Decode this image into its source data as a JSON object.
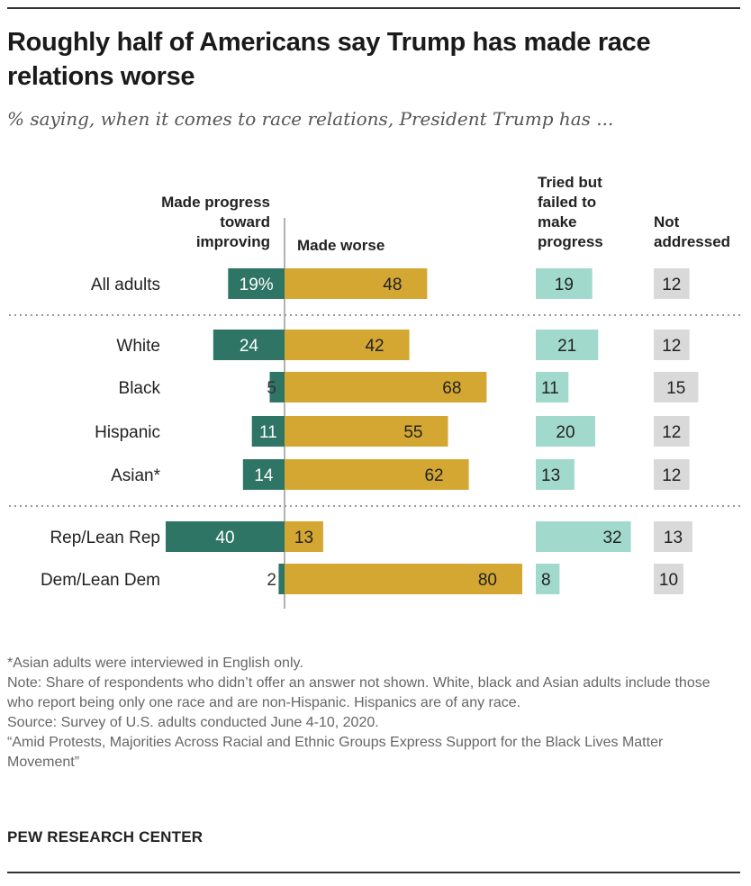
{
  "title": "Roughly half of Americans say Trump has made race relations worse",
  "subtitle": "% saying, when it comes to race relations, President Trump has ...",
  "colors": {
    "progress": "#2e7565",
    "worse": "#d4a733",
    "tried": "#a2d9cd",
    "not_addressed": "#d9d9d9"
  },
  "chart_data": {
    "type": "bar",
    "columns": {
      "progress": "Made progress toward improving",
      "worse": "Made worse",
      "tried": "Tried but failed to make progress",
      "not_addressed": "Not addressed"
    },
    "groups": [
      {
        "rows": [
          {
            "category": "All adults",
            "progress": 19,
            "progress_label": "19%",
            "worse": 48,
            "tried": 19,
            "not_addressed": 12
          }
        ]
      },
      {
        "rows": [
          {
            "category": "White",
            "progress": 24,
            "progress_label": "24",
            "worse": 42,
            "tried": 21,
            "not_addressed": 12
          },
          {
            "category": "Black",
            "progress": 5,
            "progress_label": "5",
            "worse": 68,
            "tried": 11,
            "not_addressed": 15
          },
          {
            "category": "Hispanic",
            "progress": 11,
            "progress_label": "11",
            "worse": 55,
            "tried": 20,
            "not_addressed": 12
          },
          {
            "category": "Asian*",
            "progress": 14,
            "progress_label": "14",
            "worse": 62,
            "tried": 13,
            "not_addressed": 12
          }
        ]
      },
      {
        "rows": [
          {
            "category": "Rep/Lean Rep",
            "progress": 40,
            "progress_label": "40",
            "worse": 13,
            "tried": 32,
            "not_addressed": 13
          },
          {
            "category": "Dem/Lean Dem",
            "progress": 2,
            "progress_label": "2",
            "worse": 80,
            "tried": 8,
            "not_addressed": 10
          }
        ]
      }
    ]
  },
  "notes": [
    "*Asian adults were interviewed in English only.",
    "Note: Share of respondents who didn’t offer an answer not shown. White, black and Asian adults include those who report being only one race and are non-Hispanic. Hispanics are of any race.",
    "Source: Survey of U.S. adults conducted June 4-10, 2020.",
    "“Amid Protests, Majorities Across Racial and Ethnic Groups Express Support for the Black Lives Matter Movement”"
  ],
  "brand": "PEW RESEARCH CENTER"
}
